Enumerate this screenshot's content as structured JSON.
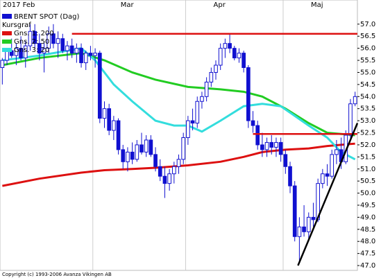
{
  "chart_data": {
    "type": "candlestick",
    "title": "BRENT SPOT (Dag)",
    "subtitle": "Kursgraf",
    "footer": "Copyright (c) 1993-2006 Avanza Vikingen AB",
    "color": "#1010d0",
    "categories": [
      "2017 Feb",
      null,
      null,
      null,
      null,
      null,
      null,
      null,
      null,
      null,
      null,
      null,
      null,
      null,
      null,
      null,
      null,
      null,
      null,
      null,
      "Mar",
      null,
      null,
      null,
      null,
      null,
      null,
      null,
      null,
      null,
      null,
      null,
      null,
      null,
      null,
      null,
      null,
      null,
      null,
      null,
      "Apr",
      null,
      null,
      null,
      null,
      null,
      null,
      null,
      null,
      null,
      null,
      null,
      null,
      null,
      null,
      null,
      null,
      null,
      null,
      null,
      null,
      "Maj",
      null,
      null,
      null,
      null,
      null,
      null,
      null,
      null,
      null,
      null,
      null,
      null,
      null,
      null,
      null
    ],
    "open": [
      55.2,
      55.5,
      55.9,
      55.7,
      56.0,
      55.6,
      56.1,
      56.7,
      56.2,
      55.8,
      56.0,
      56.6,
      56.2,
      56.4,
      55.9,
      56.1,
      55.8,
      56.0,
      55.4,
      55.8,
      55.7,
      55.8,
      53.1,
      53.5,
      52.6,
      53.0,
      51.8,
      51.3,
      51.7,
      51.4,
      52.0,
      51.7,
      52.2,
      51.6,
      51.1,
      50.7,
      50.4,
      50.8,
      51.1,
      51.4,
      52.3,
      53.0,
      52.9,
      53.8,
      54.0,
      54.6,
      55.0,
      55.3,
      56.0,
      56.2,
      56.0,
      55.6,
      55.8,
      55.2,
      53.0,
      52.8,
      52.0,
      51.8,
      52.1,
      51.9,
      52.1,
      51.6,
      51.1,
      50.3,
      48.2,
      48.6,
      48.4,
      49.0,
      48.9,
      50.4,
      50.8,
      50.7,
      51.6,
      51.8,
      51.3,
      52.4,
      53.7
    ],
    "high": [
      55.6,
      56.0,
      56.4,
      56.2,
      56.5,
      56.3,
      57.0,
      57.0,
      56.6,
      56.3,
      56.9,
      57.0,
      56.7,
      56.6,
      56.3,
      56.4,
      56.2,
      56.2,
      55.9,
      56.1,
      56.0,
      55.9,
      53.8,
      53.7,
      53.2,
      53.1,
      52.0,
      51.9,
      52.1,
      52.2,
      52.5,
      52.4,
      52.4,
      51.9,
      51.4,
      51.1,
      51.0,
      51.3,
      51.6,
      52.5,
      53.2,
      53.5,
      54.0,
      54.2,
      54.8,
      55.2,
      55.5,
      56.2,
      56.4,
      56.6,
      56.1,
      56.0,
      55.9,
      55.3,
      53.4,
      53.0,
      52.5,
      52.3,
      52.4,
      52.3,
      52.3,
      51.8,
      51.3,
      50.5,
      49.0,
      49.5,
      49.2,
      49.6,
      50.6,
      51.0,
      51.2,
      51.8,
      52.2,
      52.3,
      52.6,
      53.9,
      54.2
    ],
    "low": [
      54.5,
      55.3,
      55.6,
      55.3,
      55.5,
      55.2,
      55.9,
      56.0,
      55.5,
      55.0,
      55.8,
      56.0,
      55.6,
      55.8,
      55.5,
      55.6,
      55.4,
      55.2,
      55.1,
      55.5,
      55.2,
      52.9,
      52.7,
      52.4,
      52.2,
      51.6,
      51.0,
      50.9,
      51.2,
      51.3,
      51.6,
      51.5,
      51.5,
      50.9,
      50.5,
      49.8,
      50.1,
      50.4,
      50.8,
      51.2,
      52.0,
      52.6,
      52.7,
      53.5,
      53.8,
      54.4,
      54.7,
      55.1,
      55.6,
      55.8,
      55.5,
      55.4,
      55.0,
      52.7,
      52.5,
      51.8,
      51.5,
      51.5,
      51.6,
      51.5,
      51.3,
      50.8,
      50.0,
      48.0,
      47.2,
      48.2,
      48.0,
      48.6,
      48.8,
      50.2,
      50.3,
      50.6,
      51.2,
      51.0,
      51.2,
      52.3,
      53.6
    ],
    "close": [
      55.5,
      55.9,
      55.7,
      56.0,
      55.6,
      56.1,
      56.7,
      56.2,
      55.8,
      56.0,
      56.6,
      56.2,
      56.4,
      55.9,
      56.1,
      55.8,
      56.0,
      55.4,
      55.8,
      55.7,
      55.8,
      53.1,
      53.5,
      52.6,
      53.0,
      51.8,
      51.3,
      51.7,
      51.4,
      52.0,
      51.7,
      52.2,
      51.6,
      51.1,
      50.7,
      50.4,
      50.8,
      51.1,
      51.4,
      52.3,
      53.0,
      52.9,
      53.8,
      54.0,
      54.6,
      55.0,
      55.3,
      56.0,
      56.2,
      56.0,
      55.6,
      55.8,
      55.2,
      53.0,
      52.8,
      52.0,
      51.8,
      52.1,
      51.9,
      52.1,
      51.6,
      51.1,
      50.3,
      48.2,
      48.6,
      48.4,
      49.0,
      48.9,
      50.4,
      50.8,
      50.7,
      51.6,
      51.8,
      51.3,
      52.4,
      53.7,
      54.0
    ],
    "series": [
      {
        "name": "Gns. 1: 200",
        "color": "#dd1010",
        "x": [
          0,
          8,
          17,
          22,
          28,
          33,
          40,
          47,
          52,
          56,
          61,
          66,
          70,
          76
        ],
        "values": [
          50.3,
          50.6,
          50.85,
          50.95,
          51.0,
          51.05,
          51.15,
          51.3,
          51.5,
          51.7,
          51.8,
          51.85,
          51.95,
          52.05
        ]
      },
      {
        "name": "Gns. 2: 50",
        "color": "#22cc22",
        "x": [
          0,
          8,
          17,
          22,
          28,
          33,
          40,
          47,
          52,
          56,
          61,
          66,
          70,
          76
        ],
        "values": [
          55.3,
          55.6,
          55.8,
          55.5,
          55.0,
          54.7,
          54.4,
          54.3,
          54.2,
          54.0,
          53.5,
          52.9,
          52.5,
          52.4
        ]
      },
      {
        "name": "Gns. 3: 20",
        "color": "#33dddd",
        "x": [
          0,
          8,
          17,
          20,
          24,
          28,
          33,
          37,
          40,
          43,
          47,
          52,
          56,
          60,
          63,
          66,
          70,
          73,
          76
        ],
        "values": [
          55.5,
          55.7,
          56.0,
          55.5,
          54.5,
          53.8,
          53.0,
          52.8,
          52.8,
          52.55,
          53.0,
          53.6,
          53.7,
          53.6,
          53.2,
          52.8,
          52.3,
          51.7,
          51.4
        ]
      }
    ],
    "trend_lines": [
      {
        "color": "#dd1010",
        "x": [
          15,
          76.5
        ],
        "values": [
          56.6,
          56.6
        ]
      },
      {
        "color": "#dd1010",
        "x": [
          54,
          76.5
        ],
        "values": [
          52.45,
          52.45
        ]
      },
      {
        "color": "#000000",
        "x": [
          63.7,
          76.5
        ],
        "values": [
          47.0,
          52.9
        ]
      }
    ],
    "ylim": [
      46.8,
      58.0
    ],
    "yticks": [
      {
        "value": 47,
        "label": "47.0"
      },
      {
        "value": 47.5,
        "label": "47.5"
      },
      {
        "value": 48,
        "label": "48.0"
      },
      {
        "value": 48.5,
        "label": "48.5"
      },
      {
        "value": 49,
        "label": "49.0"
      },
      {
        "value": 49.5,
        "label": "49.5"
      },
      {
        "value": 50,
        "label": "50.0"
      },
      {
        "value": 50.5,
        "label": "50.5"
      },
      {
        "value": 51,
        "label": "51.0"
      },
      {
        "value": 51.5,
        "label": "51.5"
      },
      {
        "value": 52,
        "label": "52.0"
      },
      {
        "value": 52.5,
        "label": "52.5"
      },
      {
        "value": 53,
        "label": "53.0"
      },
      {
        "value": 53.5,
        "label": "53.5"
      },
      {
        "value": 54,
        "label": "54.0"
      },
      {
        "value": 54.5,
        "label": "54.5"
      },
      {
        "value": 55,
        "label": "55.0"
      },
      {
        "value": 55.5,
        "label": "55.5"
      },
      {
        "value": 56,
        "label": "56.0"
      },
      {
        "value": 56.5,
        "label": "56.5"
      },
      {
        "value": 57,
        "label": "57.0"
      }
    ],
    "legend": "top-left"
  }
}
